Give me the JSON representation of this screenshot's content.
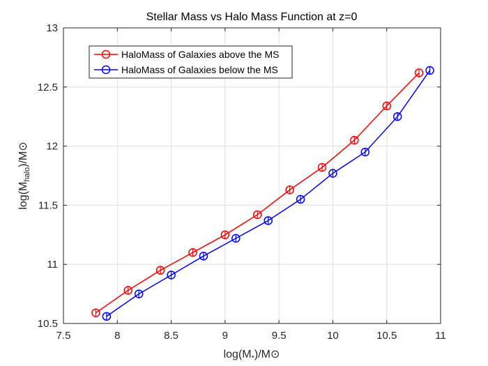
{
  "chart_data": {
    "type": "line",
    "title": "Stellar Mass vs Halo Mass Function at z=0",
    "xlabel": {
      "main": "log(M",
      "sub": "*",
      "rest": ")/M⊙"
    },
    "ylabel": {
      "main": "log(M",
      "sub": "halo",
      "rest": ")/M⊙"
    },
    "xlim": [
      7.5,
      11
    ],
    "ylim": [
      10.5,
      13
    ],
    "xticks": [
      7.5,
      8,
      8.5,
      9,
      9.5,
      10,
      10.5,
      11
    ],
    "xtick_labels": [
      "7.5",
      "8",
      "8.5",
      "9",
      "9.5",
      "10",
      "10.5",
      "11"
    ],
    "yticks": [
      10.5,
      11,
      11.5,
      12,
      12.5,
      13
    ],
    "ytick_labels": [
      "10.5",
      "11",
      "11.5",
      "12",
      "12.5",
      "13"
    ],
    "grid": true,
    "legend_position": "top-left",
    "series": [
      {
        "name": "HaloMass of Galaxies above the MS",
        "color": "#ff0000",
        "marker": "circle",
        "x": [
          7.8,
          8.1,
          8.4,
          8.7,
          9.0,
          9.3,
          9.6,
          9.9,
          10.2,
          10.5,
          10.8
        ],
        "y": [
          10.59,
          10.78,
          10.95,
          11.1,
          11.25,
          11.42,
          11.63,
          11.82,
          12.05,
          12.34,
          12.62
        ]
      },
      {
        "name": "HaloMass of Galaxies below the MS",
        "color": "#0000ff",
        "marker": "circle",
        "x": [
          7.9,
          8.2,
          8.5,
          8.8,
          9.1,
          9.4,
          9.7,
          10.0,
          10.3,
          10.6,
          10.9
        ],
        "y": [
          10.56,
          10.75,
          10.91,
          11.07,
          11.22,
          11.37,
          11.55,
          11.77,
          11.95,
          12.25,
          12.64
        ]
      }
    ]
  }
}
